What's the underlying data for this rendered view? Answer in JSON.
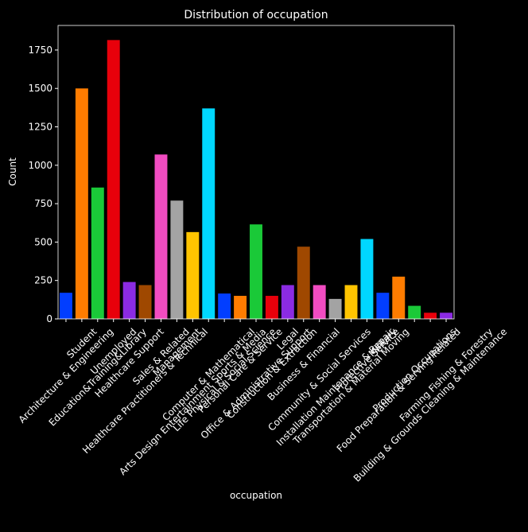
{
  "chart_data": {
    "type": "bar",
    "title": "Distribution of occupation",
    "xlabel": "occupation",
    "ylabel": "Count",
    "categories": [
      "Architecture & Engineering",
      "Student",
      "Education&Training&Library",
      "Unemployed",
      "Healthcare Support",
      "Healthcare Practitioners & Technical",
      "Sales & Related",
      "Management",
      "Arts Design Entertainment Sports & Media",
      "Computer & Mathematical",
      "Life Physical & Social Science",
      "Personal Care & Service",
      "Office & Administrative Support",
      "Construction & Extraction",
      "Legal",
      "Business & Financial",
      "Community & Social Services",
      "Installation Maintenance & Repair",
      "Transportation & Material Moving",
      "Protective Service",
      "Military",
      "Food Preparation & Serving Related",
      "Production Occupations",
      "Building & Grounds Cleaning & Maintenance",
      "Farming Fishing & Forestry"
    ],
    "values": [
      170,
      1500,
      855,
      1815,
      240,
      220,
      1070,
      770,
      565,
      1370,
      165,
      150,
      615,
      150,
      220,
      470,
      220,
      130,
      220,
      520,
      170,
      275,
      85,
      40,
      40
    ],
    "colors": [
      "#023eff",
      "#ff7c00",
      "#1ac938",
      "#e8000b",
      "#8b2be2",
      "#9f4800",
      "#f14cc1",
      "#a3a3a3",
      "#ffc400",
      "#00d7ff",
      "#023eff",
      "#ff7c00",
      "#1ac938",
      "#e8000b",
      "#8b2be2",
      "#9f4800",
      "#f14cc1",
      "#a3a3a3",
      "#ffc400",
      "#00d7ff",
      "#023eff",
      "#ff7c00",
      "#1ac938",
      "#e8000b",
      "#8b2be2"
    ],
    "ylim": [
      0,
      1910
    ],
    "yticks": [
      0,
      250,
      500,
      750,
      1000,
      1250,
      1500,
      1750
    ]
  }
}
